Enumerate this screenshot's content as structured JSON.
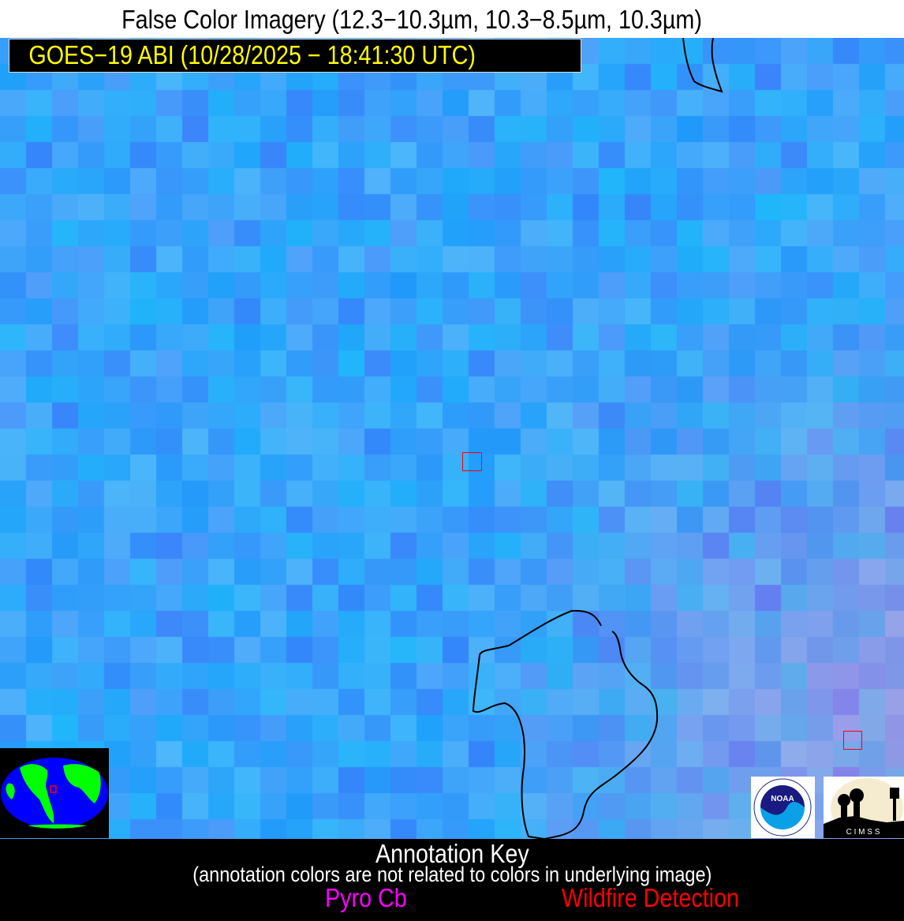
{
  "title": "False Color Imagery (12.3−10.3µm, 10.3−8.5µm, 10.3µm)",
  "satellite_label": "GOES−19 ABI (10/28/2025 − 18:41:30 UTC)",
  "annotation_key": {
    "title": "Annotation Key",
    "subtitle": "(annotation colors are not related to colors in underlying image)",
    "items": [
      {
        "label": "Pyro Cb",
        "color": "#ff00ff"
      },
      {
        "label": "Wildfire Detection",
        "color": "#ff0000"
      }
    ]
  },
  "detections": [
    {
      "type": "Wildfire Detection",
      "color": "#ff0000"
    },
    {
      "type": "Wildfire Detection",
      "color": "#ff0000"
    }
  ],
  "logos": {
    "noaa": "NOAA",
    "cimss": "C I M S S"
  },
  "colors": {
    "label_text": "#ffff00",
    "coastline": "#000000",
    "imagery_base": "#2aa8f5",
    "globe_ocean": "#0000ff",
    "globe_land": "#00ff00"
  }
}
